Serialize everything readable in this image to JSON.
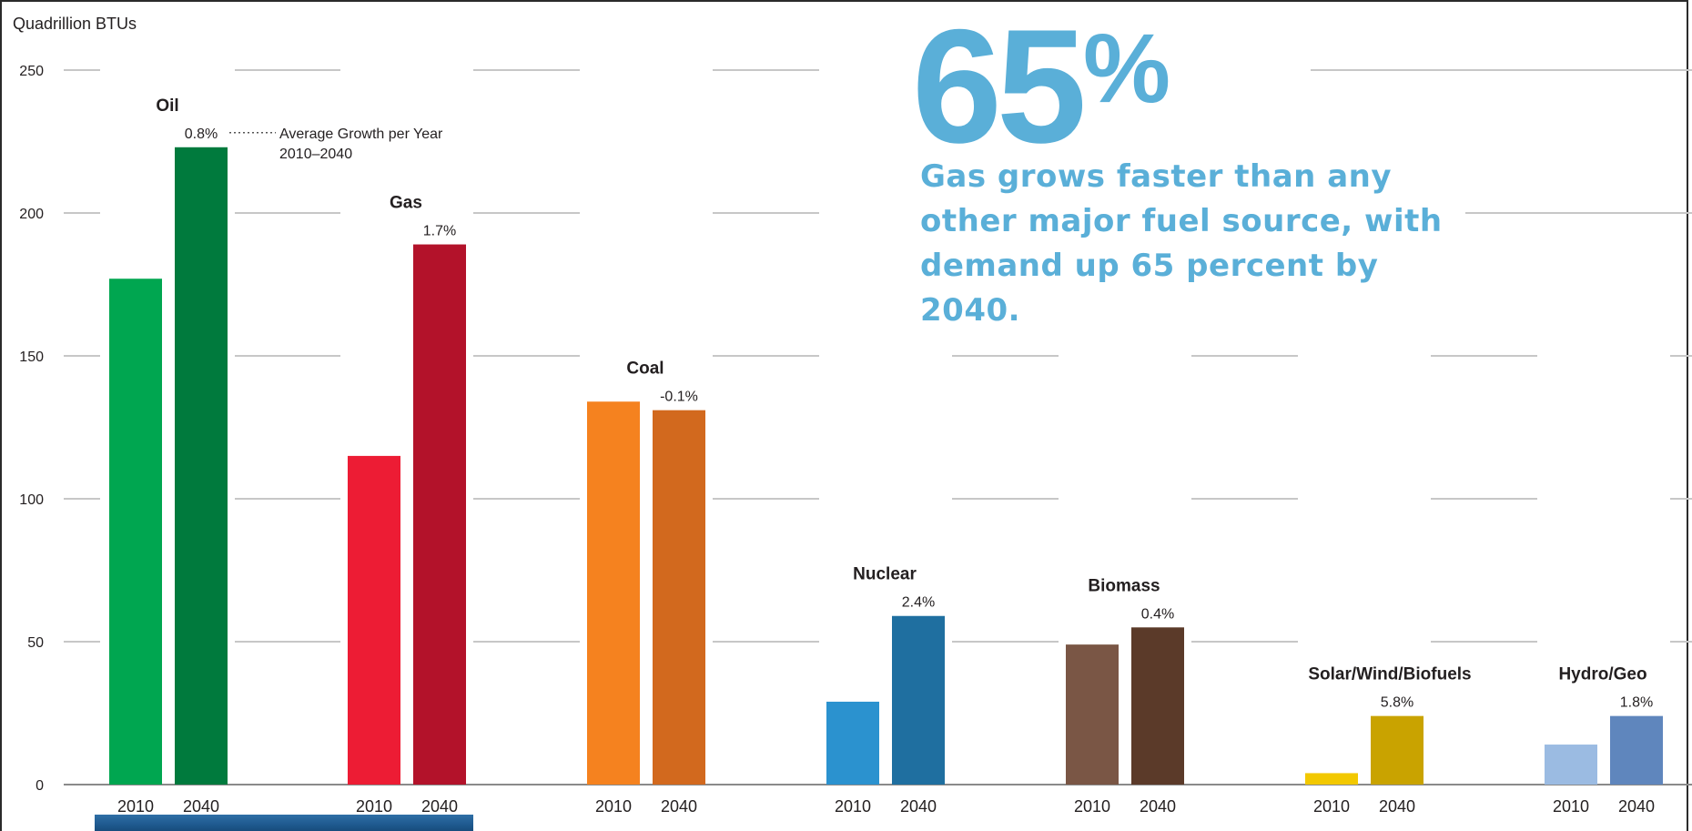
{
  "chart_data": {
    "type": "bar",
    "ylabel": "Quadrillion BTUs",
    "ylim": [
      0,
      250
    ],
    "yticks": [
      0,
      50,
      100,
      150,
      200,
      250
    ],
    "grid": true,
    "growth_label": "Average Growth per Year",
    "growth_period": "2010–2040",
    "groups": [
      {
        "name": "Oil",
        "growth": "0.8%",
        "years": [
          "2010",
          "2040"
        ],
        "values": [
          177,
          223
        ],
        "colors": [
          "#00a650",
          "#007a3d"
        ]
      },
      {
        "name": "Gas",
        "growth": "1.7%",
        "years": [
          "2010",
          "2040"
        ],
        "values": [
          115,
          189
        ],
        "colors": [
          "#ed1c34",
          "#b3122a"
        ]
      },
      {
        "name": "Coal",
        "growth": "-0.1%",
        "years": [
          "2010",
          "2040"
        ],
        "values": [
          134,
          131
        ],
        "colors": [
          "#f5821f",
          "#d2691e"
        ]
      },
      {
        "name": "Nuclear",
        "growth": "2.4%",
        "years": [
          "2010",
          "2040"
        ],
        "values": [
          29,
          59
        ],
        "colors": [
          "#2b92cf",
          "#1f6fa0"
        ]
      },
      {
        "name": "Biomass",
        "growth": "0.4%",
        "years": [
          "2010",
          "2040"
        ],
        "values": [
          49,
          55
        ],
        "colors": [
          "#7a5645",
          "#5b3a29"
        ]
      },
      {
        "name": "Solar/Wind/Biofuels",
        "growth": "5.8%",
        "years": [
          "2010",
          "2040"
        ],
        "values": [
          4,
          24
        ],
        "colors": [
          "#f2c800",
          "#c9a300"
        ]
      },
      {
        "name": "Hydro/Geo",
        "growth": "1.8%",
        "years": [
          "2010",
          "2040"
        ],
        "values": [
          14,
          24
        ],
        "colors": [
          "#9bbbe2",
          "#5f86bd"
        ]
      }
    ]
  },
  "highlight": {
    "number": "65",
    "percent": "%",
    "text": "Gas grows faster than any other major fuel source, with demand up 65 percent by 2040.",
    "color": "#5aafd8"
  }
}
